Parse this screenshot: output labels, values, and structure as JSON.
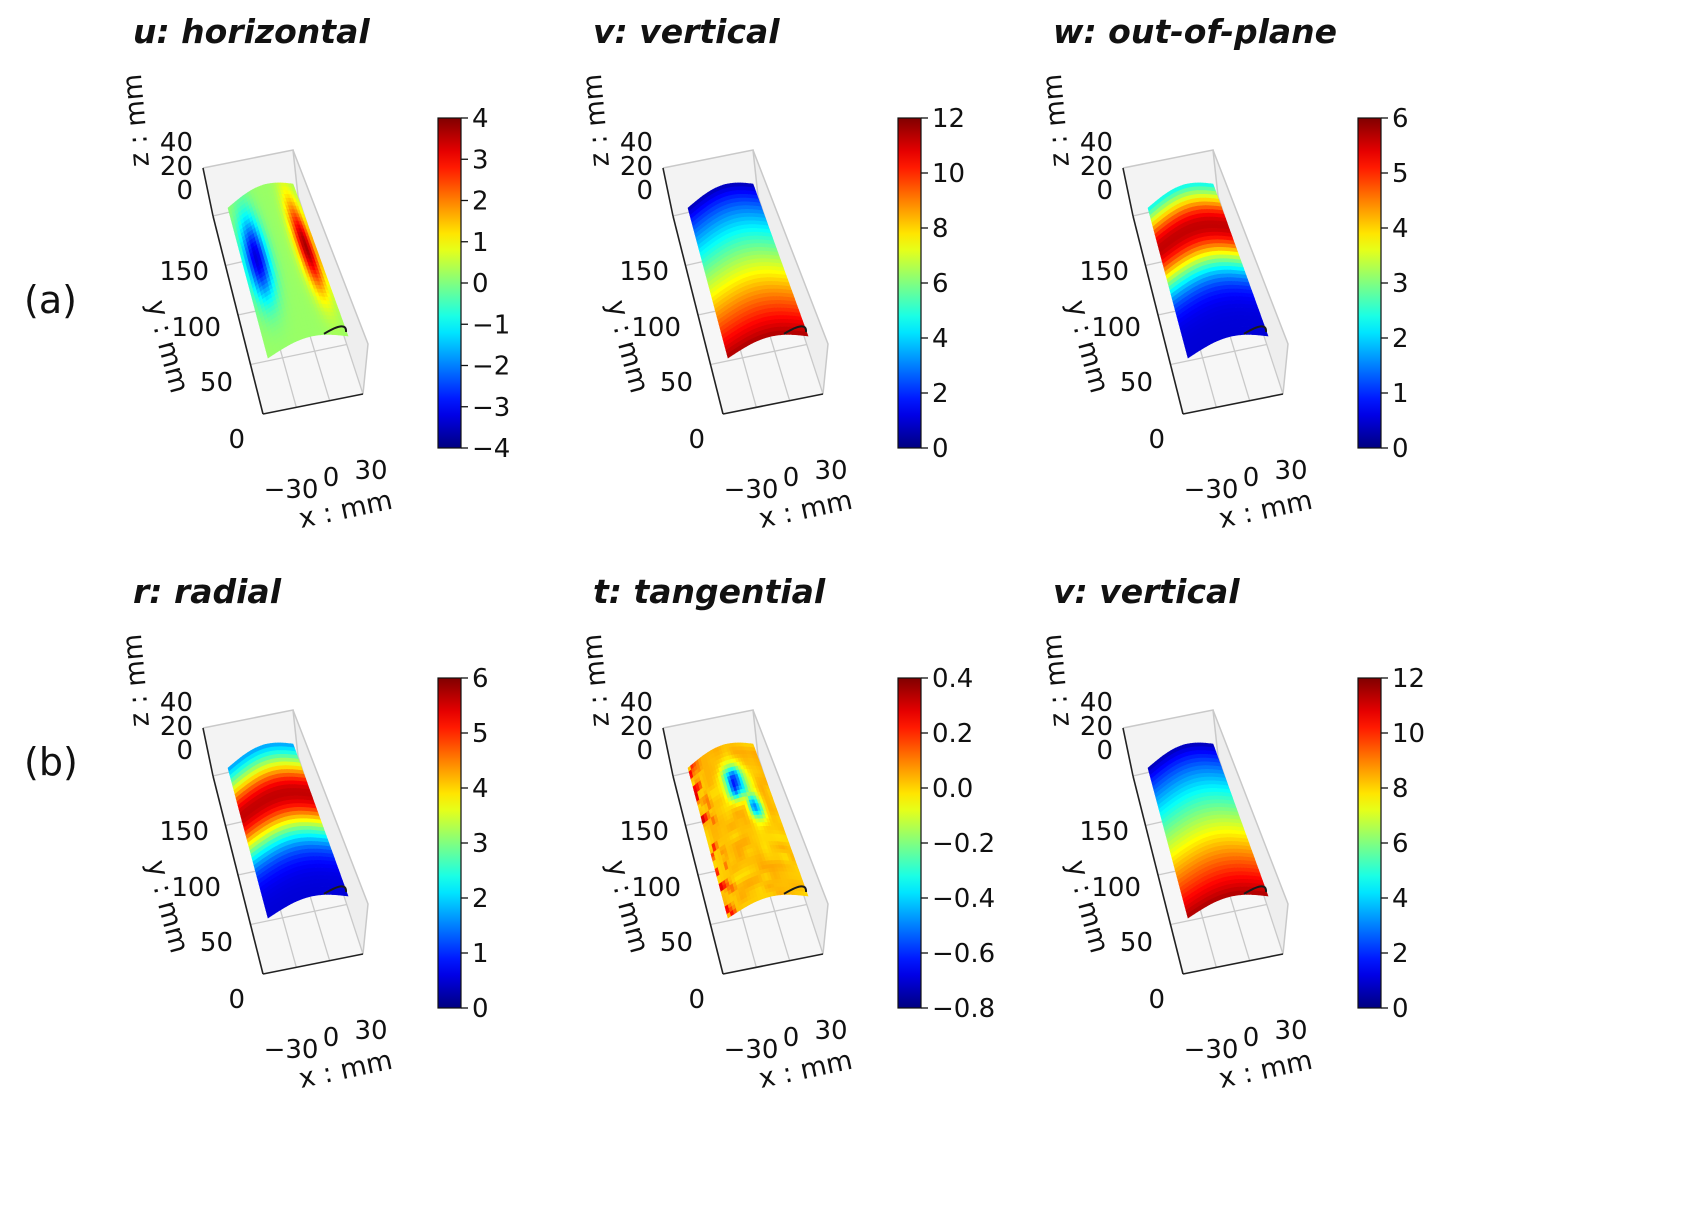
{
  "row_labels": [
    "(a)",
    "(b)"
  ],
  "colors": {
    "pane": "#f3f3f3",
    "grid": "#c9c9c9",
    "colormap": "jet"
  },
  "chart_data": [
    {
      "type": "heatmap",
      "projection": "3d-surface",
      "title": "u: horizontal",
      "xlabel": "x : mm",
      "ylabel": "y : mm",
      "zlabel": "z : mm",
      "x_ticks": [
        "−30",
        "0",
        "30"
      ],
      "y_ticks": [
        "0",
        "50",
        "100",
        "150"
      ],
      "z_ticks": [
        "0",
        "20",
        "40"
      ],
      "colorbar": {
        "min": -4,
        "max": 4,
        "ticks": [
          "−4",
          "−3",
          "−2",
          "−1",
          "0",
          "1",
          "2",
          "3",
          "4"
        ]
      },
      "field": {
        "kind": "lateral",
        "left_low": -3.5,
        "right_high": 3.5,
        "base": 0.2
      }
    },
    {
      "type": "heatmap",
      "projection": "3d-surface",
      "title": "v: vertical",
      "xlabel": "x : mm",
      "ylabel": "y : mm",
      "zlabel": "z : mm",
      "x_ticks": [
        "−30",
        "0",
        "30"
      ],
      "y_ticks": [
        "0",
        "50",
        "100",
        "150"
      ],
      "z_ticks": [
        "0",
        "20",
        "40"
      ],
      "colorbar": {
        "min": 0,
        "max": 12,
        "ticks": [
          "0",
          "2",
          "4",
          "6",
          "8",
          "10",
          "12"
        ]
      },
      "field": {
        "kind": "gradient",
        "top": 0.5,
        "bottom": 11.5
      }
    },
    {
      "type": "heatmap",
      "projection": "3d-surface",
      "title": "w: out-of-plane",
      "xlabel": "x : mm",
      "ylabel": "y : mm",
      "zlabel": "z : mm",
      "x_ticks": [
        "−30",
        "0",
        "30"
      ],
      "y_ticks": [
        "0",
        "50",
        "100",
        "150"
      ],
      "z_ticks": [
        "0",
        "20",
        "40"
      ],
      "colorbar": {
        "min": 0,
        "max": 6,
        "ticks": [
          "0",
          "1",
          "2",
          "3",
          "4",
          "5",
          "6"
        ]
      },
      "field": {
        "kind": "band",
        "peak": 5.6,
        "peak_at": 0.28,
        "edge": 0.5
      }
    },
    {
      "type": "heatmap",
      "projection": "3d-surface",
      "title": "r: radial",
      "xlabel": "x : mm",
      "ylabel": "y : mm",
      "zlabel": "z : mm",
      "x_ticks": [
        "−30",
        "0",
        "30"
      ],
      "y_ticks": [
        "0",
        "50",
        "100",
        "150"
      ],
      "z_ticks": [
        "0",
        "20",
        "40"
      ],
      "colorbar": {
        "min": 0,
        "max": 6,
        "ticks": [
          "0",
          "1",
          "2",
          "3",
          "4",
          "5",
          "6"
        ]
      },
      "field": {
        "kind": "band",
        "peak": 5.6,
        "peak_at": 0.33,
        "edge": 0.5
      }
    },
    {
      "type": "heatmap",
      "projection": "3d-surface",
      "title": "t: tangential",
      "xlabel": "x : mm",
      "ylabel": "y : mm",
      "zlabel": "z : mm",
      "x_ticks": [
        "−30",
        "0",
        "30"
      ],
      "y_ticks": [
        "0",
        "50",
        "100",
        "150"
      ],
      "z_ticks": [
        "0",
        "20",
        "40"
      ],
      "colorbar": {
        "min": -0.8,
        "max": 0.4,
        "ticks": [
          "−0.8",
          "−0.6",
          "−0.4",
          "−0.2",
          "0.0",
          "0.2",
          "0.4"
        ]
      },
      "field": {
        "kind": "noisy",
        "base": 0.02,
        "low": -0.7,
        "high": 0.3
      }
    },
    {
      "type": "heatmap",
      "projection": "3d-surface",
      "title": "v: vertical",
      "xlabel": "x : mm",
      "ylabel": "y : mm",
      "zlabel": "z : mm",
      "x_ticks": [
        "−30",
        "0",
        "30"
      ],
      "y_ticks": [
        "0",
        "50",
        "100",
        "150"
      ],
      "z_ticks": [
        "0",
        "20",
        "40"
      ],
      "colorbar": {
        "min": 0,
        "max": 12,
        "ticks": [
          "0",
          "2",
          "4",
          "6",
          "8",
          "10",
          "12"
        ]
      },
      "field": {
        "kind": "gradient",
        "top": 0.5,
        "bottom": 11.5
      }
    }
  ]
}
